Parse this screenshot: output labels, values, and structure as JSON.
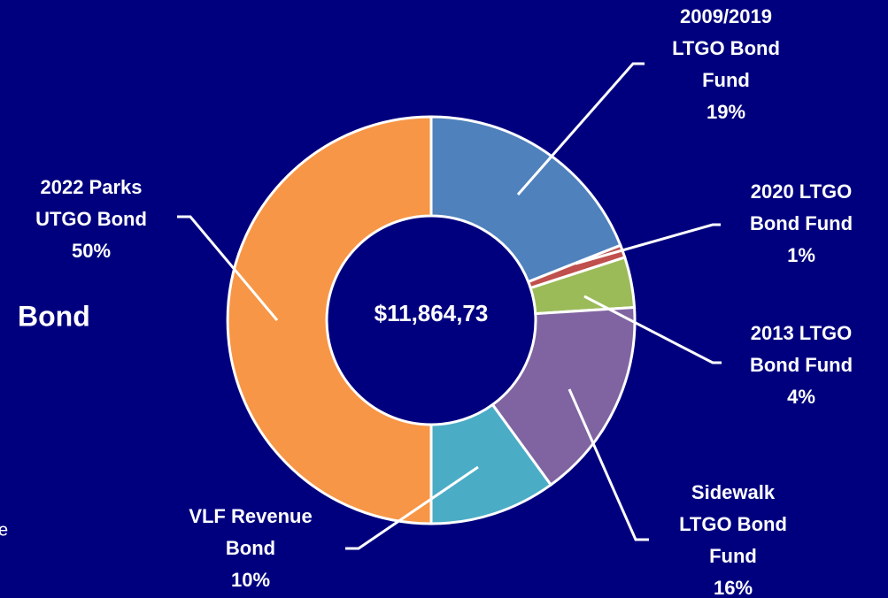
{
  "chart_data": {
    "type": "donut",
    "center_label": "$11,864,73",
    "background_text": [
      "Bond",
      "e"
    ],
    "categories": [
      [
        "2009/2019",
        "LTGO Bond",
        "Fund"
      ],
      [
        "2020 LTGO",
        "Bond Fund"
      ],
      [
        "2013 LTGO",
        "Bond Fund"
      ],
      [
        "Sidewalk",
        "LTGO Bond",
        "Fund"
      ],
      [
        "VLF Revenue",
        "Bond"
      ],
      [
        "2022 Parks",
        "UTGO Bond"
      ]
    ],
    "values": [
      19,
      1,
      4,
      16,
      10,
      50
    ],
    "value_labels": [
      "19%",
      "1%",
      "4%",
      "16%",
      "10%",
      "50%"
    ],
    "colors": [
      "#4f81bd",
      "#c0504d",
      "#9bbb59",
      "#8064a2",
      "#4bacc6",
      "#f79646"
    ]
  }
}
